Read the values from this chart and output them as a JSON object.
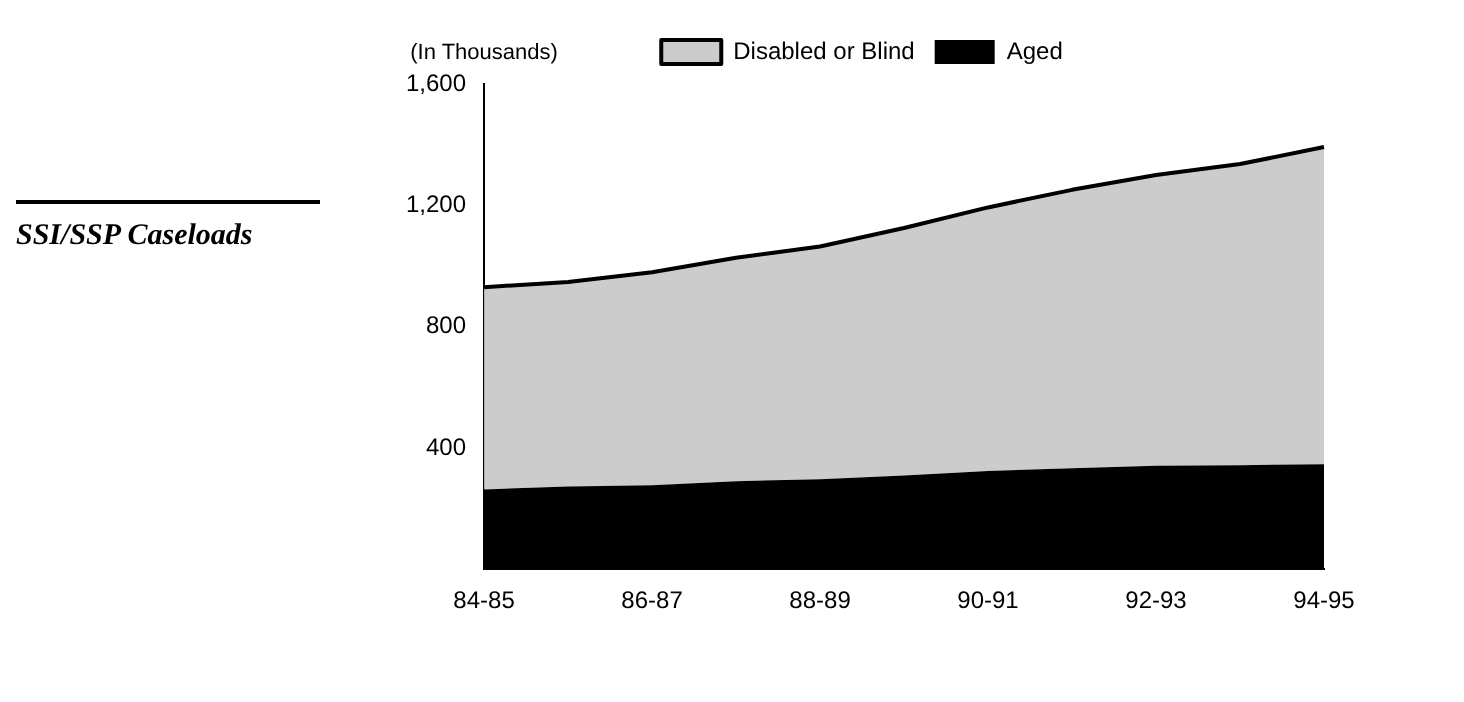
{
  "chart_data": {
    "type": "area",
    "title": "SSI/SSP Caseloads",
    "ylabel": "(In Thousands)",
    "stacked": true,
    "categories": [
      "84-85",
      null,
      "86-87",
      null,
      "88-89",
      null,
      "90-91",
      null,
      "92-93",
      null,
      "94-95"
    ],
    "series": [
      {
        "name": "Aged",
        "color": "#000000",
        "values": [
          263,
          273,
          277,
          290,
          297,
          309,
          324,
          333,
          341,
          343,
          346
        ]
      },
      {
        "name": "Disabled or Blind",
        "color": "#cccccc",
        "values": [
          667,
          674,
          702,
          737,
          767,
          816,
          869,
          918,
          959,
          993,
          1046
        ]
      }
    ],
    "ylim": [
      0,
      1600
    ],
    "yticks": [
      400,
      800,
      {
        "value": 1200,
        "label": "1,200"
      },
      {
        "value": 1600,
        "label": "1,600"
      }
    ],
    "grid": false,
    "legend": "top"
  }
}
